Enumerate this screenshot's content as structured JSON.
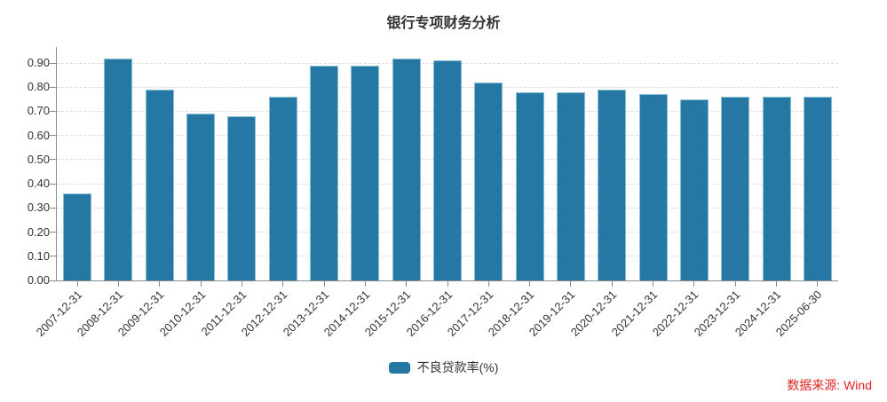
{
  "title": "银行专项财务分析",
  "source_note": "数据来源: Wind",
  "colors": {
    "bar": "#2578a3",
    "bar_border": "#8dbdd4",
    "grid": "#dcdcdc",
    "axis": "#8c8c8c",
    "text": "#333333",
    "source": "#e02222"
  },
  "legend": {
    "position": "bottom-center",
    "items": [
      {
        "label": "不良贷款率(%)",
        "swatch_color": "#2578a3"
      }
    ]
  },
  "chart_data": {
    "type": "bar",
    "title": "银行专项财务分析",
    "categories": [
      "2007-12-31",
      "2008-12-31",
      "2009-12-31",
      "2010-12-31",
      "2011-12-31",
      "2012-12-31",
      "2013-12-31",
      "2014-12-31",
      "2015-12-31",
      "2016-12-31",
      "2017-12-31",
      "2018-12-31",
      "2019-12-31",
      "2020-12-31",
      "2021-12-31",
      "2022-12-31",
      "2023-12-31",
      "2024-12-31",
      "2025-06-30"
    ],
    "series": [
      {
        "name": "不良贷款率(%)",
        "values": [
          0.36,
          0.92,
          0.79,
          0.69,
          0.68,
          0.76,
          0.89,
          0.89,
          0.92,
          0.91,
          0.82,
          0.78,
          0.78,
          0.79,
          0.77,
          0.75,
          0.76,
          0.76,
          0.76
        ]
      }
    ],
    "xlabel": "",
    "ylabel": "",
    "ylim": [
      0,
      0.9
    ],
    "ytick_step": 0.1,
    "ytick_labels": [
      "0.00",
      "0.10",
      "0.20",
      "0.30",
      "0.40",
      "0.50",
      "0.60",
      "0.70",
      "0.80",
      "0.90"
    ],
    "grid": "horizontal-dashed",
    "legend_position": "bottom-center",
    "x_label_rotation": -45
  }
}
